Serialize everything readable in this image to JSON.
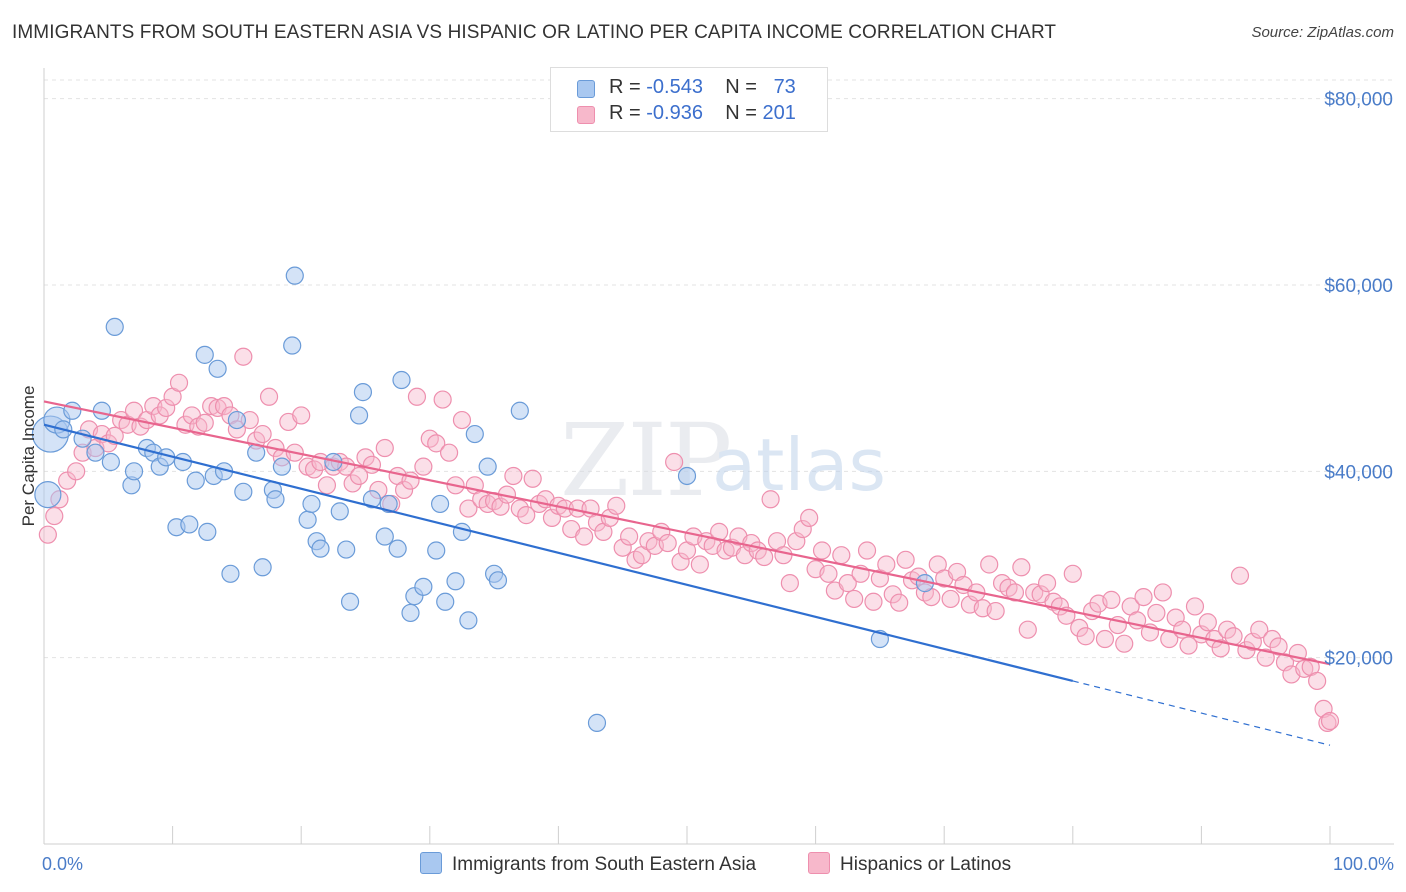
{
  "title": "IMMIGRANTS FROM SOUTH EASTERN ASIA VS HISPANIC OR LATINO PER CAPITA INCOME CORRELATION CHART",
  "source": "Source: ZipAtlas.com",
  "watermark": {
    "zip": "ZIP",
    "atlas": "atlas"
  },
  "legend": {
    "r_label": "R =",
    "n_label": "N =",
    "series1": {
      "r": "-0.543",
      "n": "73"
    },
    "series2": {
      "r": "-0.936",
      "n": "201"
    }
  },
  "colors": {
    "blue_fill": "#a9c8f0",
    "blue_stroke": "#6a9bd8",
    "blue_line": "#2f6fd0",
    "pink_fill": "#f7b8cb",
    "pink_stroke": "#ee8fae",
    "pink_line": "#e8658e",
    "accent_text": "#3c6fcd"
  },
  "chart_data": {
    "type": "scatter",
    "title": "IMMIGRANTS FROM SOUTH EASTERN ASIA VS HISPANIC OR LATINO PER CAPITA INCOME CORRELATION CHART",
    "xlabel": "",
    "ylabel": "Per Capita Income",
    "xlim": [
      0,
      100
    ],
    "ylim": [
      0,
      82000
    ],
    "y_ticks": [
      {
        "value": 20000,
        "label": "$20,000"
      },
      {
        "value": 40000,
        "label": "$40,000"
      },
      {
        "value": 60000,
        "label": "$60,000"
      },
      {
        "value": 80000,
        "label": "$80,000"
      }
    ],
    "x_tick_labels": {
      "min": "0.0%",
      "max": "100.0%"
    },
    "x_minor_ticks": [
      10,
      20,
      30,
      40,
      50,
      60,
      70,
      80,
      90,
      100
    ],
    "series": [
      {
        "name": "Immigrants from South Eastern Asia",
        "r": -0.543,
        "n": 73,
        "trend": {
          "x0": 0,
          "y0": 45000,
          "x1": 80,
          "y1": 17500,
          "dash_to": 100,
          "dash_y": 10600
        },
        "points": [
          [
            0.3,
            37500,
            2
          ],
          [
            0.5,
            44000,
            3
          ],
          [
            1.0,
            45500,
            2
          ],
          [
            1.5,
            44500,
            1
          ],
          [
            2.2,
            46500,
            1
          ],
          [
            3.0,
            43500,
            1
          ],
          [
            4.0,
            42000,
            1
          ],
          [
            4.5,
            46500,
            1
          ],
          [
            5.2,
            41000,
            1
          ],
          [
            5.5,
            55500,
            1
          ],
          [
            6.8,
            38500,
            1
          ],
          [
            7.0,
            40000,
            1
          ],
          [
            8.0,
            42500,
            1
          ],
          [
            8.5,
            42000,
            1
          ],
          [
            9.0,
            40500,
            1
          ],
          [
            9.5,
            41500,
            1
          ],
          [
            10.3,
            34000,
            1
          ],
          [
            10.8,
            41000,
            1
          ],
          [
            11.3,
            34300,
            1
          ],
          [
            11.8,
            39000,
            1
          ],
          [
            12.5,
            52500,
            1
          ],
          [
            12.7,
            33500,
            1
          ],
          [
            13.2,
            39500,
            1
          ],
          [
            13.5,
            51000,
            1
          ],
          [
            14.0,
            40000,
            1
          ],
          [
            14.5,
            29000,
            1
          ],
          [
            15.0,
            45500,
            1
          ],
          [
            15.5,
            37800,
            1
          ],
          [
            16.5,
            42000,
            1
          ],
          [
            17.0,
            29700,
            1
          ],
          [
            17.8,
            38000,
            1
          ],
          [
            18.0,
            37000,
            1
          ],
          [
            18.5,
            40500,
            1
          ],
          [
            19.3,
            53500,
            1
          ],
          [
            19.5,
            61000,
            1
          ],
          [
            20.5,
            34800,
            1
          ],
          [
            20.8,
            36500,
            1
          ],
          [
            21.2,
            32500,
            1
          ],
          [
            21.5,
            31700,
            1
          ],
          [
            22.5,
            41000,
            1
          ],
          [
            23.0,
            35700,
            1
          ],
          [
            23.5,
            31600,
            1
          ],
          [
            23.8,
            26000,
            1
          ],
          [
            24.5,
            46000,
            1
          ],
          [
            24.8,
            48500,
            1
          ],
          [
            25.5,
            37000,
            1
          ],
          [
            26.5,
            33000,
            1
          ],
          [
            26.8,
            36500,
            1
          ],
          [
            27.5,
            31700,
            1
          ],
          [
            27.8,
            49800,
            1
          ],
          [
            28.5,
            24800,
            1
          ],
          [
            28.8,
            26600,
            1
          ],
          [
            29.5,
            27600,
            1
          ],
          [
            30.5,
            31500,
            1
          ],
          [
            30.8,
            36500,
            1
          ],
          [
            31.2,
            26000,
            1
          ],
          [
            32.0,
            28200,
            1
          ],
          [
            32.5,
            33500,
            1
          ],
          [
            33.0,
            24000,
            1
          ],
          [
            33.5,
            44000,
            1
          ],
          [
            34.5,
            40500,
            1
          ],
          [
            35.0,
            29000,
            1
          ],
          [
            35.3,
            28300,
            1
          ],
          [
            37.0,
            46500,
            1
          ],
          [
            43.0,
            13000,
            1
          ],
          [
            50.0,
            39500,
            1
          ],
          [
            65.0,
            22000,
            1
          ],
          [
            68.5,
            28000,
            1
          ]
        ]
      },
      {
        "name": "Hispanics or Latinos",
        "r": -0.936,
        "n": 201,
        "trend": {
          "x0": 0,
          "y0": 47500,
          "x1": 100,
          "y1": 19300
        },
        "points": [
          [
            0.3,
            33200
          ],
          [
            0.8,
            35200
          ],
          [
            1.2,
            37000
          ],
          [
            1.8,
            39000
          ],
          [
            2.5,
            40000
          ],
          [
            3.0,
            42000
          ],
          [
            3.5,
            44500
          ],
          [
            4.0,
            42500
          ],
          [
            4.5,
            44000
          ],
          [
            5.0,
            43000
          ],
          [
            5.5,
            43800
          ],
          [
            6.0,
            45500
          ],
          [
            6.5,
            45000
          ],
          [
            7.0,
            46500
          ],
          [
            7.5,
            44800
          ],
          [
            8.0,
            45500
          ],
          [
            8.5,
            47000
          ],
          [
            9.0,
            46000
          ],
          [
            9.5,
            46800
          ],
          [
            10.0,
            48000
          ],
          [
            10.5,
            49500
          ],
          [
            11.0,
            45000
          ],
          [
            11.5,
            46000
          ],
          [
            12.0,
            44800
          ],
          [
            12.5,
            45200
          ],
          [
            13.0,
            47000
          ],
          [
            13.5,
            46800
          ],
          [
            14.0,
            47000
          ],
          [
            14.5,
            46000
          ],
          [
            15.0,
            44500
          ],
          [
            15.5,
            52300
          ],
          [
            16.0,
            45500
          ],
          [
            16.5,
            43300
          ],
          [
            17.0,
            44000
          ],
          [
            17.5,
            48000
          ],
          [
            18.0,
            42500
          ],
          [
            18.5,
            41500
          ],
          [
            19.0,
            45300
          ],
          [
            19.5,
            42000
          ],
          [
            20.0,
            46000
          ],
          [
            20.5,
            40500
          ],
          [
            21.0,
            40200
          ],
          [
            21.5,
            41000
          ],
          [
            22.0,
            38500
          ],
          [
            22.5,
            40500
          ],
          [
            23.0,
            41000
          ],
          [
            23.5,
            40500
          ],
          [
            24.0,
            38700
          ],
          [
            24.5,
            39500
          ],
          [
            25.0,
            41500
          ],
          [
            25.5,
            40700
          ],
          [
            26.0,
            38000
          ],
          [
            26.5,
            42500
          ],
          [
            27.0,
            36500
          ],
          [
            27.5,
            39500
          ],
          [
            28.0,
            38000
          ],
          [
            28.5,
            39000
          ],
          [
            29.0,
            48000
          ],
          [
            29.5,
            40500
          ],
          [
            30.0,
            43500
          ],
          [
            30.5,
            43000
          ],
          [
            31.0,
            47700
          ],
          [
            31.5,
            42000
          ],
          [
            32.0,
            38500
          ],
          [
            32.5,
            45500
          ],
          [
            33.0,
            36000
          ],
          [
            33.5,
            38500
          ],
          [
            34.0,
            37000
          ],
          [
            34.5,
            36500
          ],
          [
            35.0,
            36800
          ],
          [
            35.5,
            36200
          ],
          [
            36.0,
            37500
          ],
          [
            36.5,
            39500
          ],
          [
            37.0,
            36000
          ],
          [
            37.5,
            35300
          ],
          [
            38.0,
            39200
          ],
          [
            38.5,
            36500
          ],
          [
            39.0,
            37000
          ],
          [
            39.5,
            35000
          ],
          [
            40.0,
            36300
          ],
          [
            40.5,
            36000
          ],
          [
            41.0,
            33800
          ],
          [
            41.5,
            36000
          ],
          [
            42.0,
            33000
          ],
          [
            42.5,
            36000
          ],
          [
            43.0,
            34500
          ],
          [
            43.5,
            33500
          ],
          [
            44.0,
            35000
          ],
          [
            44.5,
            36300
          ],
          [
            45.0,
            31800
          ],
          [
            45.5,
            33000
          ],
          [
            46.0,
            30500
          ],
          [
            46.5,
            31000
          ],
          [
            47.0,
            32500
          ],
          [
            47.5,
            32000
          ],
          [
            48.0,
            33500
          ],
          [
            48.5,
            32300
          ],
          [
            49.0,
            41000
          ],
          [
            49.5,
            30300
          ],
          [
            50.0,
            31500
          ],
          [
            50.5,
            33000
          ],
          [
            51.0,
            30000
          ],
          [
            51.5,
            32500
          ],
          [
            52.0,
            32000
          ],
          [
            52.5,
            33500
          ],
          [
            53.0,
            31500
          ],
          [
            53.5,
            31800
          ],
          [
            54.0,
            33000
          ],
          [
            54.5,
            31000
          ],
          [
            55.0,
            32300
          ],
          [
            55.5,
            31500
          ],
          [
            56.0,
            30800
          ],
          [
            56.5,
            37000
          ],
          [
            57.0,
            32500
          ],
          [
            57.5,
            31000
          ],
          [
            58.0,
            28000
          ],
          [
            58.5,
            32500
          ],
          [
            59.0,
            33800
          ],
          [
            59.5,
            35000
          ],
          [
            60.0,
            29500
          ],
          [
            60.5,
            31500
          ],
          [
            61.0,
            29000
          ],
          [
            61.5,
            27200
          ],
          [
            62.0,
            31000
          ],
          [
            62.5,
            28000
          ],
          [
            63.0,
            26300
          ],
          [
            63.5,
            29000
          ],
          [
            64.0,
            31500
          ],
          [
            64.5,
            26000
          ],
          [
            65.0,
            28500
          ],
          [
            65.5,
            30000
          ],
          [
            66.0,
            26800
          ],
          [
            66.5,
            25900
          ],
          [
            67.0,
            30500
          ],
          [
            67.5,
            28300
          ],
          [
            68.0,
            28700
          ],
          [
            68.5,
            27000
          ],
          [
            69.0,
            26500
          ],
          [
            69.5,
            30000
          ],
          [
            70.0,
            28500
          ],
          [
            70.5,
            26300
          ],
          [
            71.0,
            29200
          ],
          [
            71.5,
            27800
          ],
          [
            72.0,
            25700
          ],
          [
            72.5,
            27000
          ],
          [
            73.0,
            25300
          ],
          [
            73.5,
            30000
          ],
          [
            74.0,
            25000
          ],
          [
            74.5,
            28000
          ],
          [
            75.0,
            27500
          ],
          [
            75.5,
            27000
          ],
          [
            76.0,
            29700
          ],
          [
            76.5,
            23000
          ],
          [
            77.0,
            27000
          ],
          [
            77.5,
            26800
          ],
          [
            78.0,
            28000
          ],
          [
            78.5,
            26000
          ],
          [
            79.0,
            25500
          ],
          [
            79.5,
            24500
          ],
          [
            80.0,
            29000
          ],
          [
            80.5,
            23200
          ],
          [
            81.0,
            22300
          ],
          [
            81.5,
            25000
          ],
          [
            82.0,
            25800
          ],
          [
            82.5,
            22000
          ],
          [
            83.0,
            26200
          ],
          [
            83.5,
            23500
          ],
          [
            84.0,
            21500
          ],
          [
            84.5,
            25500
          ],
          [
            85.0,
            24000
          ],
          [
            85.5,
            26500
          ],
          [
            86.0,
            22700
          ],
          [
            86.5,
            24800
          ],
          [
            87.0,
            27000
          ],
          [
            87.5,
            22000
          ],
          [
            88.0,
            24300
          ],
          [
            88.5,
            23000
          ],
          [
            89.0,
            21300
          ],
          [
            89.5,
            25500
          ],
          [
            90.0,
            22500
          ],
          [
            90.5,
            23800
          ],
          [
            91.0,
            22000
          ],
          [
            91.5,
            21000
          ],
          [
            92.0,
            23000
          ],
          [
            92.5,
            22300
          ],
          [
            93.0,
            28800
          ],
          [
            93.5,
            20800
          ],
          [
            94.0,
            21700
          ],
          [
            94.5,
            23000
          ],
          [
            95.0,
            20000
          ],
          [
            95.5,
            22000
          ],
          [
            96.0,
            21200
          ],
          [
            96.5,
            19500
          ],
          [
            97.0,
            18200
          ],
          [
            97.5,
            20500
          ],
          [
            98.0,
            18800
          ],
          [
            98.5,
            19000
          ],
          [
            99.0,
            17500
          ],
          [
            99.5,
            14500
          ],
          [
            99.8,
            13000
          ],
          [
            100.0,
            13200
          ]
        ]
      }
    ]
  },
  "bottom_legend": {
    "item1": "Immigrants from South Eastern Asia",
    "item2": "Hispanics or Latinos"
  }
}
